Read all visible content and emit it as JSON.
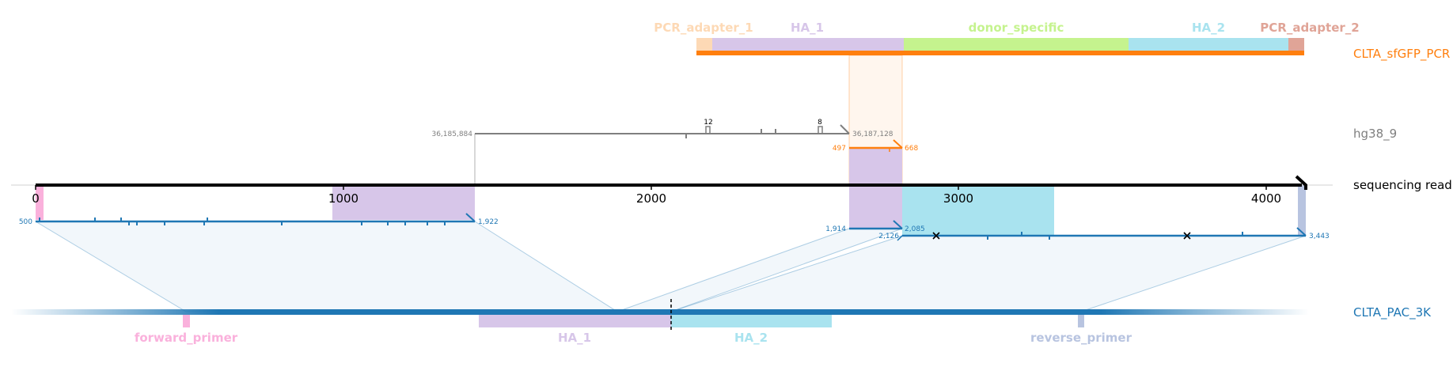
{
  "colors": {
    "pcr_adapter_1": "#fdd9b5",
    "ha_1": "#d7c6e9",
    "donor_specific": "#c5f38e",
    "ha_2": "#a9e3ef",
    "pcr_adapter_2": "#e0a497",
    "orange": "#ff7f0e",
    "blue": "#1f77b4",
    "grey": "#7f7f7f",
    "forward_primer": "#fab1dc",
    "reverse_primer": "#b8c4e0"
  },
  "donor": {
    "track_label": "CLTA_sfGFP_PCR",
    "features": [
      {
        "key": "pcr_adapter_1",
        "label": "PCR_adapter_1"
      },
      {
        "key": "ha_1",
        "label": "HA_1"
      },
      {
        "key": "donor_specific",
        "label": "donor_specific"
      },
      {
        "key": "ha_2",
        "label": "HA_2"
      },
      {
        "key": "pcr_adapter_2",
        "label": "PCR_adapter_2"
      }
    ]
  },
  "genome": {
    "track_label": "hg38_9",
    "start_coord": "36,185,884",
    "end_coord": "36,187,128",
    "insertion_counts": [
      "12",
      "8"
    ],
    "donor_alignment_start": "497",
    "donor_alignment_end": "668"
  },
  "read": {
    "track_label": "sequencing read",
    "ticks": [
      "0",
      "1000",
      "2000",
      "3000",
      "4000"
    ],
    "alignment1": {
      "start": "500",
      "end": "1,922"
    },
    "alignment2": {
      "start": "1,914",
      "end": "2,085"
    },
    "alignment3": {
      "start": "2,126",
      "end": "3,443"
    }
  },
  "target": {
    "track_label": "CLTA_PAC_3K",
    "features": [
      {
        "key": "forward_primer",
        "label": "forward_primer"
      },
      {
        "key": "ha_1",
        "label": "HA_1"
      },
      {
        "key": "ha_2",
        "label": "HA_2"
      },
      {
        "key": "reverse_primer",
        "label": "reverse_primer"
      }
    ]
  }
}
